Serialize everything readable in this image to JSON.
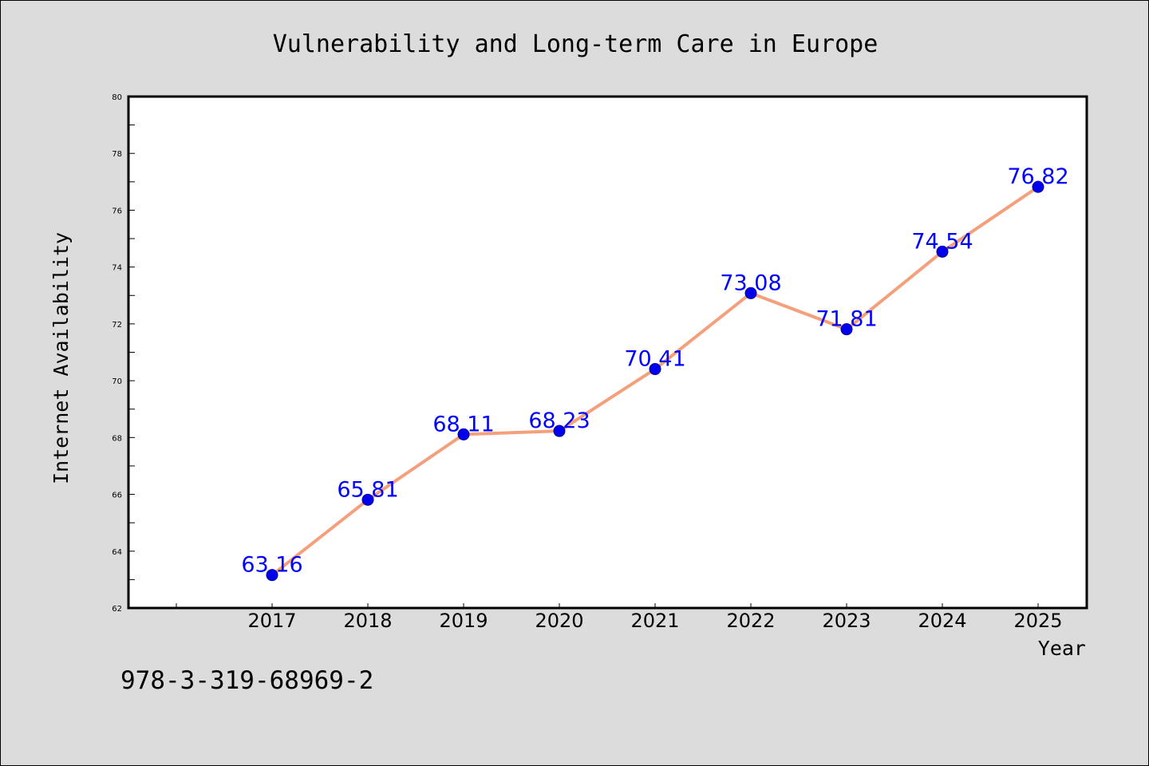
{
  "figure": {
    "background": "#dcdcdc",
    "isbn_text": "978-3-319-68969-2"
  },
  "chart_data": {
    "type": "line",
    "title": "Vulnerability and Long-term Care in Europe",
    "xlabel": "Year",
    "ylabel": "Internet Availability",
    "x": [
      "2017",
      "2018",
      "2019",
      "2020",
      "2021",
      "2022",
      "2023",
      "2024",
      "2025"
    ],
    "series": [
      {
        "values": [
          63.16,
          65.81,
          68.11,
          68.23,
          70.41,
          73.08,
          71.81,
          74.54,
          76.82
        ],
        "labels": [
          "63.16",
          "65.81",
          "68.11",
          "68.23",
          "70.41",
          "73.08",
          "71.81",
          "74.54",
          "76.82"
        ],
        "line_color": "#f4a07c",
        "marker_color": "#0000ee",
        "label_color": "#0000ff"
      }
    ],
    "ylim": [
      62,
      80
    ],
    "yticks": [
      62,
      64,
      66,
      68,
      70,
      72,
      74,
      76,
      78,
      80
    ],
    "grid": false,
    "legend": "none"
  }
}
